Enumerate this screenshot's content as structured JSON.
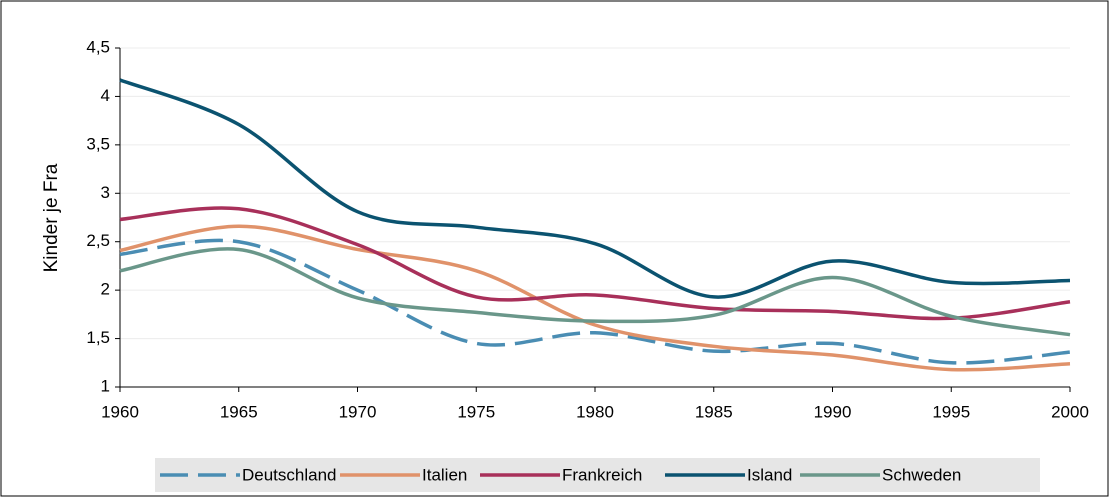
{
  "chart_data": {
    "type": "line",
    "y_label": "Kinder je Fra",
    "x": [
      1960,
      1965,
      1970,
      1975,
      1980,
      1985,
      1990,
      1995,
      2000
    ],
    "xlim": [
      1960,
      2000
    ],
    "xticks": [
      1960,
      1965,
      1970,
      1975,
      1980,
      1985,
      1990,
      1995,
      2000
    ],
    "ylim": [
      1,
      4.5
    ],
    "yticks": [
      1,
      {
        "value": 1.5,
        "label": "1,5"
      },
      2,
      {
        "value": 2.5,
        "label": "2,5"
      },
      3,
      {
        "value": 3.5,
        "label": "3,5"
      },
      4,
      {
        "value": 4.5,
        "label": "4,5"
      }
    ],
    "grid": true,
    "legend": "bottom",
    "series": [
      {
        "name": "Deutschland",
        "color": "#4a8db3",
        "dashed": true,
        "values": [
          2.37,
          2.5,
          2.0,
          1.45,
          1.56,
          1.37,
          1.45,
          1.25,
          1.36
        ]
      },
      {
        "name": "Italien",
        "color": "#e0926a",
        "values": [
          2.41,
          2.66,
          2.42,
          2.2,
          1.64,
          1.42,
          1.33,
          1.18,
          1.24
        ]
      },
      {
        "name": "Frankreich",
        "color": "#a8305a",
        "values": [
          2.73,
          2.84,
          2.47,
          1.93,
          1.95,
          1.81,
          1.78,
          1.71,
          1.88
        ]
      },
      {
        "name": "Island",
        "color": "#0b5370",
        "values": [
          4.17,
          3.71,
          2.81,
          2.65,
          2.48,
          1.93,
          2.3,
          2.08,
          2.1
        ]
      },
      {
        "name": "Schweden",
        "color": "#6a978a",
        "values": [
          2.2,
          2.42,
          1.92,
          1.77,
          1.68,
          1.74,
          2.13,
          1.73,
          1.54
        ]
      }
    ]
  }
}
